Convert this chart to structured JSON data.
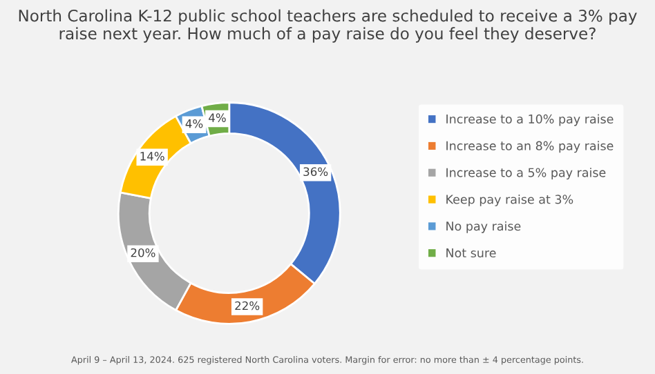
{
  "chart_data": {
    "type": "donut",
    "title": "North Carolina K-12 public school teachers are scheduled to receive a 3% pay raise next year. How much of a pay raise do you feel they deserve?",
    "categories": [
      "Increase to a 10% pay raise",
      "Increase to an 8% pay raise",
      "Increase to a 5% pay raise",
      "Keep pay raise at 3%",
      "No pay raise",
      "Not sure"
    ],
    "values": [
      36,
      22,
      20,
      14,
      4,
      4
    ],
    "colors": [
      "#4472c4",
      "#ed7d31",
      "#a5a5a5",
      "#ffc000",
      "#5b9bd5",
      "#70ad47"
    ],
    "value_labels": [
      "36%",
      "22%",
      "20%",
      "14%",
      "4%",
      "4%"
    ],
    "legend": "right",
    "annotations": [
      "April 9 – April 13, 2024. 625 registered North Carolina voters. Margin for error: no more than ± 4 percentage points."
    ]
  }
}
